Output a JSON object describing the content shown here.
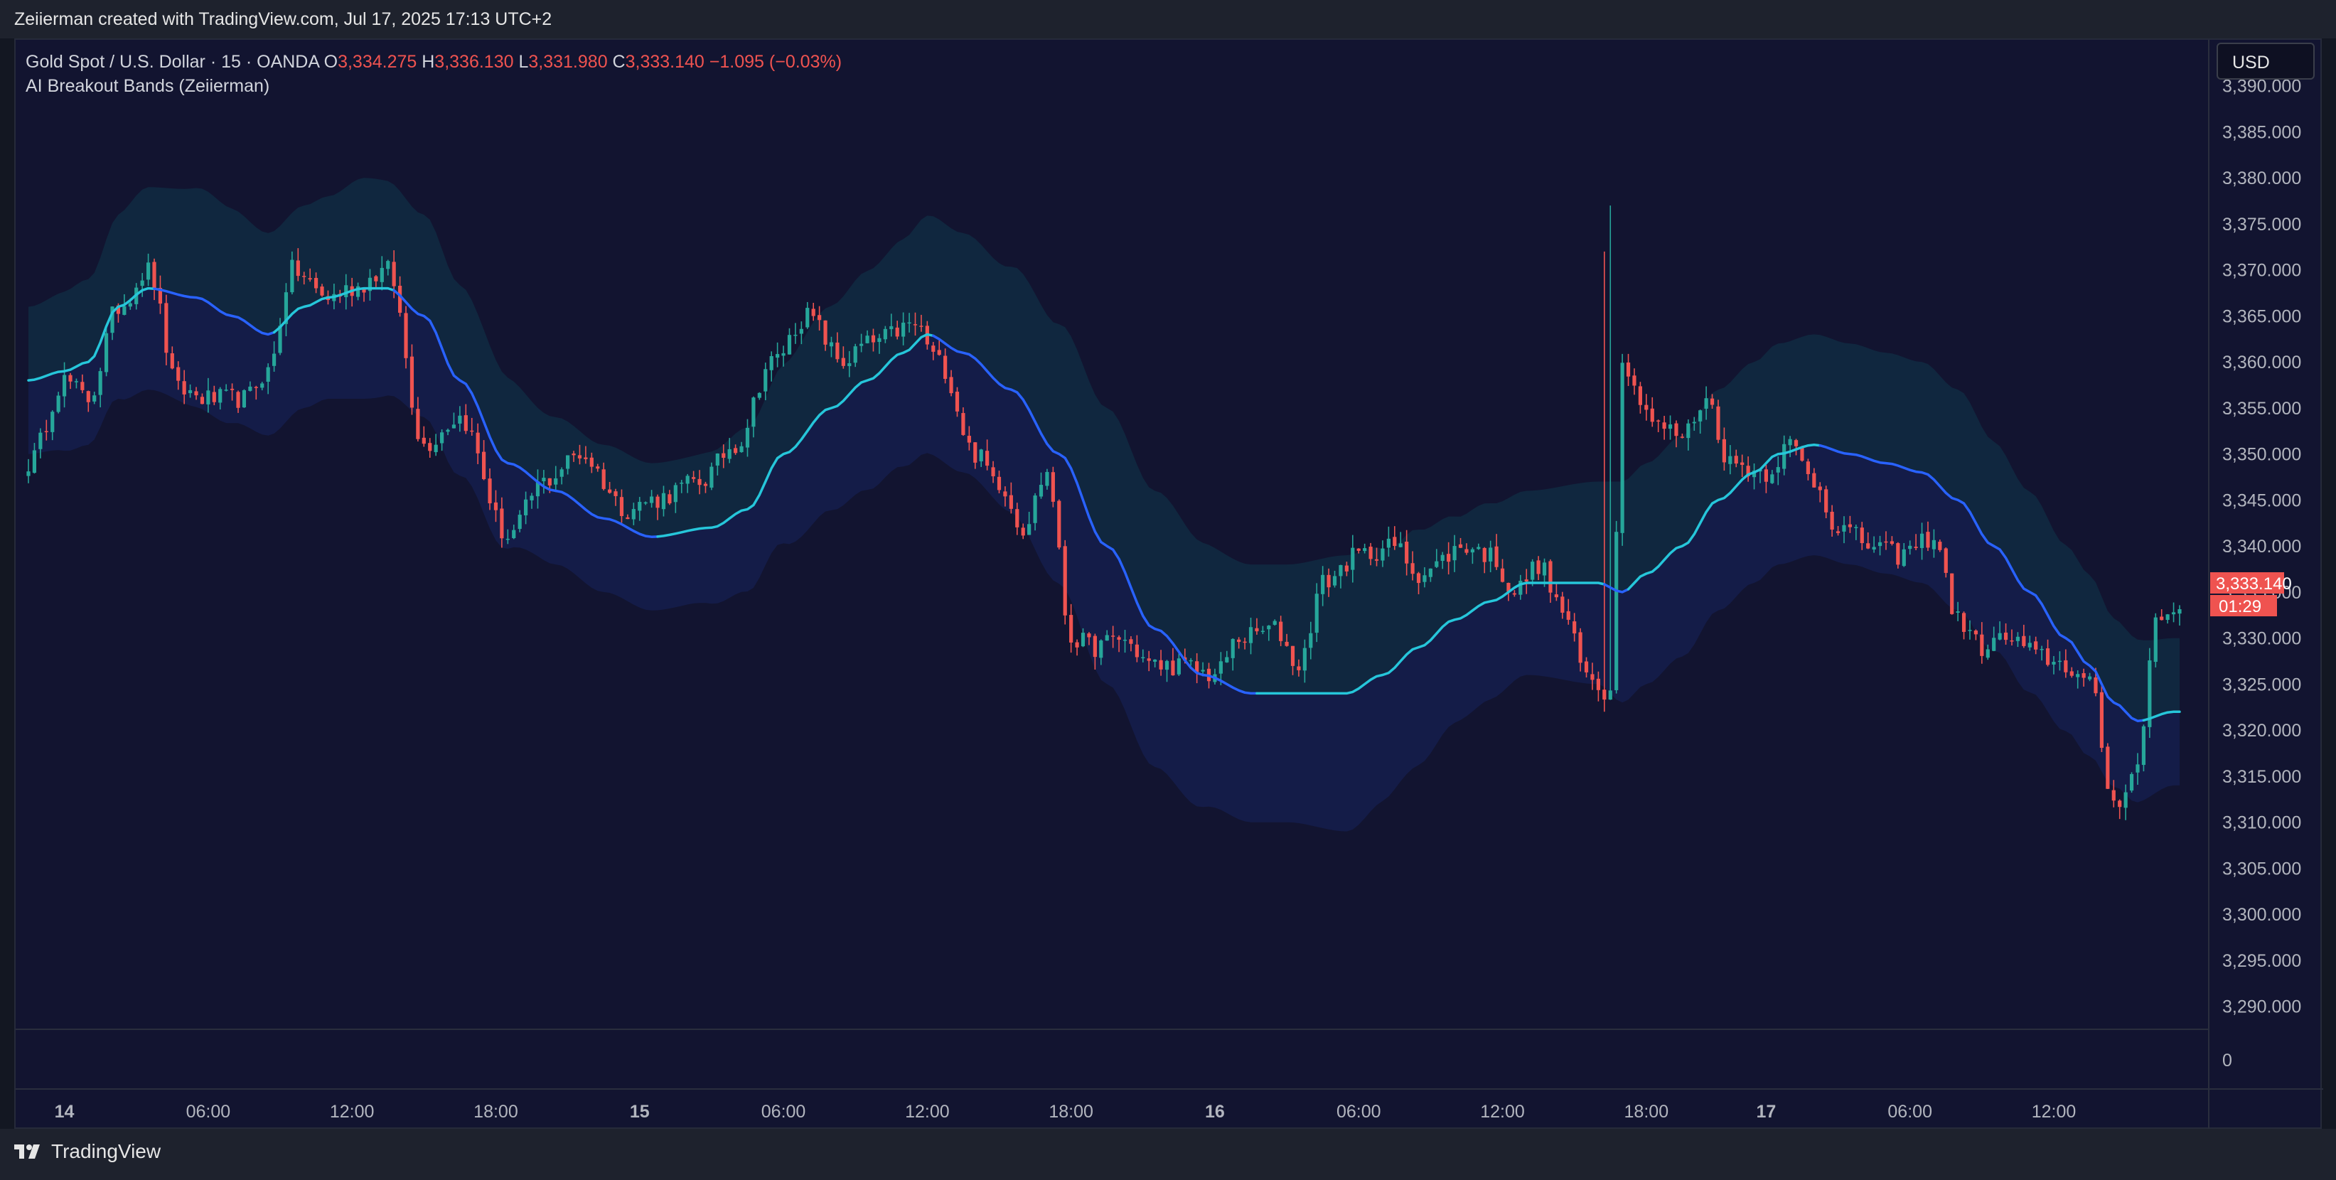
{
  "header": {
    "credit": "Zeiierman created with TradingView.com, Jul 17, 2025 17:13 UTC+2"
  },
  "legend": {
    "symbol": "Gold Spot / U.S. Dollar · 15 · OANDA",
    "o_label": "O",
    "o_value": "3,334.275",
    "h_label": "H",
    "h_value": "3,336.130",
    "l_label": "L",
    "l_value": "3,331.980",
    "c_label": "C",
    "c_value": "3,333.140",
    "change": "−1.095 (−0.03%)",
    "indicator": "AI Breakout Bands (Zeiierman)"
  },
  "price_scale": {
    "currency": "USD",
    "volume_zero": "0",
    "countdown": "01:29"
  },
  "footer": {
    "brand": "TradingView"
  },
  "colors": {
    "background": "#121430",
    "upper_band": "#10273f",
    "lower_band": "#141c48",
    "bull": "#26a69a",
    "bear": "#ef5350",
    "midline_up": "#26c6da",
    "midline_down": "#2962ff"
  },
  "chart_data": {
    "type": "candlestick",
    "title": "",
    "ylim": [
      3287.5,
      3395
    ],
    "y_ticks": [
      "3,390.000",
      "3,385.000",
      "3,380.000",
      "3,375.000",
      "3,370.000",
      "3,365.000",
      "3,360.000",
      "3,355.000",
      "3,350.000",
      "3,345.000",
      "3,340.000",
      "3,335.000",
      "3,330.000",
      "3,325.000",
      "3,320.000",
      "3,315.000",
      "3,310.000",
      "3,305.000",
      "3,300.000",
      "3,295.000",
      "3,290.000"
    ],
    "y_tick_values": [
      3390,
      3385,
      3380,
      3375,
      3370,
      3365,
      3360,
      3355,
      3350,
      3345,
      3340,
      3335,
      3330,
      3325,
      3320,
      3315,
      3310,
      3305,
      3300,
      3295,
      3290
    ],
    "x_ticks": [
      {
        "label": "14",
        "bar": 6,
        "bold": true
      },
      {
        "label": "06:00",
        "bar": 30
      },
      {
        "label": "12:00",
        "bar": 54
      },
      {
        "label": "18:00",
        "bar": 78
      },
      {
        "label": "15",
        "bar": 102,
        "bold": true
      },
      {
        "label": "06:00",
        "bar": 126
      },
      {
        "label": "12:00",
        "bar": 150
      },
      {
        "label": "18:00",
        "bar": 174
      },
      {
        "label": "16",
        "bar": 198,
        "bold": true
      },
      {
        "label": "06:00",
        "bar": 222
      },
      {
        "label": "12:00",
        "bar": 246
      },
      {
        "label": "18:00",
        "bar": 270
      },
      {
        "label": "17",
        "bar": 290,
        "bold": true
      },
      {
        "label": "06:00",
        "bar": 314
      },
      {
        "label": "12:00",
        "bar": 338
      }
    ],
    "last_price": 3333.14,
    "anchors": {
      "close": [
        [
          0,
          3349
        ],
        [
          6,
          3358
        ],
        [
          10,
          3356
        ],
        [
          15,
          3366
        ],
        [
          20,
          3370
        ],
        [
          25,
          3357
        ],
        [
          30,
          3356
        ],
        [
          36,
          3356
        ],
        [
          40,
          3359
        ],
        [
          44,
          3370
        ],
        [
          50,
          3367
        ],
        [
          54,
          3368
        ],
        [
          60,
          3370
        ],
        [
          66,
          3351
        ],
        [
          72,
          3354
        ],
        [
          80,
          3341
        ],
        [
          86,
          3347
        ],
        [
          92,
          3350
        ],
        [
          100,
          3344
        ],
        [
          104,
          3345
        ],
        [
          112,
          3347
        ],
        [
          118,
          3351
        ],
        [
          124,
          3360
        ],
        [
          130,
          3365
        ],
        [
          136,
          3360
        ],
        [
          140,
          3362
        ],
        [
          148,
          3364
        ],
        [
          152,
          3360
        ],
        [
          158,
          3350
        ],
        [
          162,
          3347
        ],
        [
          166,
          3342
        ],
        [
          170,
          3348
        ],
        [
          174,
          3330
        ],
        [
          178,
          3329
        ],
        [
          182,
          3330
        ],
        [
          188,
          3327
        ],
        [
          192,
          3327
        ],
        [
          198,
          3326
        ],
        [
          202,
          3330
        ],
        [
          208,
          3331
        ],
        [
          212,
          3327
        ],
        [
          216,
          3336
        ],
        [
          222,
          3339
        ],
        [
          228,
          3340
        ],
        [
          232,
          3337
        ],
        [
          240,
          3340
        ],
        [
          244,
          3339
        ],
        [
          248,
          3335
        ],
        [
          252,
          3338
        ],
        [
          256,
          3333
        ],
        [
          260,
          3326
        ],
        [
          264,
          3324
        ],
        [
          266,
          3361
        ],
        [
          268,
          3357
        ],
        [
          272,
          3353
        ],
        [
          276,
          3352
        ],
        [
          280,
          3356
        ],
        [
          284,
          3349
        ],
        [
          290,
          3348
        ],
        [
          294,
          3351
        ],
        [
          298,
          3347
        ],
        [
          302,
          3342
        ],
        [
          308,
          3340
        ],
        [
          312,
          3339
        ],
        [
          318,
          3341
        ],
        [
          322,
          3332
        ],
        [
          326,
          3329
        ],
        [
          330,
          3330
        ],
        [
          336,
          3328
        ],
        [
          340,
          3327
        ],
        [
          344,
          3325
        ],
        [
          348,
          3312
        ],
        [
          352,
          3316
        ],
        [
          355,
          3332
        ],
        [
          358,
          3333
        ]
      ],
      "midline": [
        [
          0,
          3358
        ],
        [
          6,
          3359
        ],
        [
          10,
          3360
        ],
        [
          15,
          3366
        ],
        [
          20,
          3368
        ],
        [
          28,
          3367
        ],
        [
          34,
          3365
        ],
        [
          40,
          3363
        ],
        [
          46,
          3366
        ],
        [
          50,
          3367
        ],
        [
          56,
          3368
        ],
        [
          60,
          3368
        ],
        [
          66,
          3365
        ],
        [
          72,
          3358
        ],
        [
          80,
          3349
        ],
        [
          88,
          3346
        ],
        [
          96,
          3343
        ],
        [
          104,
          3341
        ],
        [
          114,
          3342
        ],
        [
          120,
          3344
        ],
        [
          126,
          3350
        ],
        [
          134,
          3355
        ],
        [
          140,
          3358
        ],
        [
          146,
          3361
        ],
        [
          150,
          3363
        ],
        [
          156,
          3361
        ],
        [
          164,
          3357
        ],
        [
          172,
          3350
        ],
        [
          180,
          3340
        ],
        [
          188,
          3331
        ],
        [
          196,
          3326
        ],
        [
          204,
          3324
        ],
        [
          212,
          3324
        ],
        [
          220,
          3324
        ],
        [
          226,
          3326
        ],
        [
          232,
          3329
        ],
        [
          238,
          3332
        ],
        [
          244,
          3334
        ],
        [
          250,
          3336
        ],
        [
          256,
          3336
        ],
        [
          262,
          3336
        ],
        [
          266,
          3335
        ],
        [
          270,
          3337
        ],
        [
          276,
          3340
        ],
        [
          282,
          3345
        ],
        [
          288,
          3348
        ],
        [
          292,
          3350
        ],
        [
          298,
          3351
        ],
        [
          304,
          3350
        ],
        [
          310,
          3349
        ],
        [
          316,
          3348
        ],
        [
          322,
          3345
        ],
        [
          328,
          3340
        ],
        [
          334,
          3335
        ],
        [
          340,
          3330
        ],
        [
          344,
          3327
        ],
        [
          348,
          3323
        ],
        [
          352,
          3321
        ],
        [
          358,
          3322
        ]
      ],
      "width": [
        [
          0,
          8
        ],
        [
          10,
          9
        ],
        [
          20,
          11
        ],
        [
          30,
          12
        ],
        [
          40,
          11
        ],
        [
          50,
          11
        ],
        [
          56,
          12
        ],
        [
          66,
          11
        ],
        [
          76,
          10
        ],
        [
          86,
          8
        ],
        [
          98,
          8
        ],
        [
          110,
          8
        ],
        [
          122,
          9
        ],
        [
          132,
          11
        ],
        [
          142,
          12
        ],
        [
          152,
          13
        ],
        [
          160,
          13
        ],
        [
          170,
          14
        ],
        [
          180,
          15
        ],
        [
          190,
          15
        ],
        [
          200,
          14
        ],
        [
          210,
          14
        ],
        [
          220,
          15
        ],
        [
          230,
          13
        ],
        [
          240,
          11
        ],
        [
          250,
          10
        ],
        [
          262,
          11
        ],
        [
          266,
          12
        ],
        [
          272,
          12
        ],
        [
          280,
          12
        ],
        [
          290,
          12
        ],
        [
          300,
          12
        ],
        [
          312,
          12
        ],
        [
          322,
          12
        ],
        [
          332,
          11
        ],
        [
          342,
          10
        ],
        [
          350,
          9
        ],
        [
          358,
          8
        ]
      ]
    }
  }
}
